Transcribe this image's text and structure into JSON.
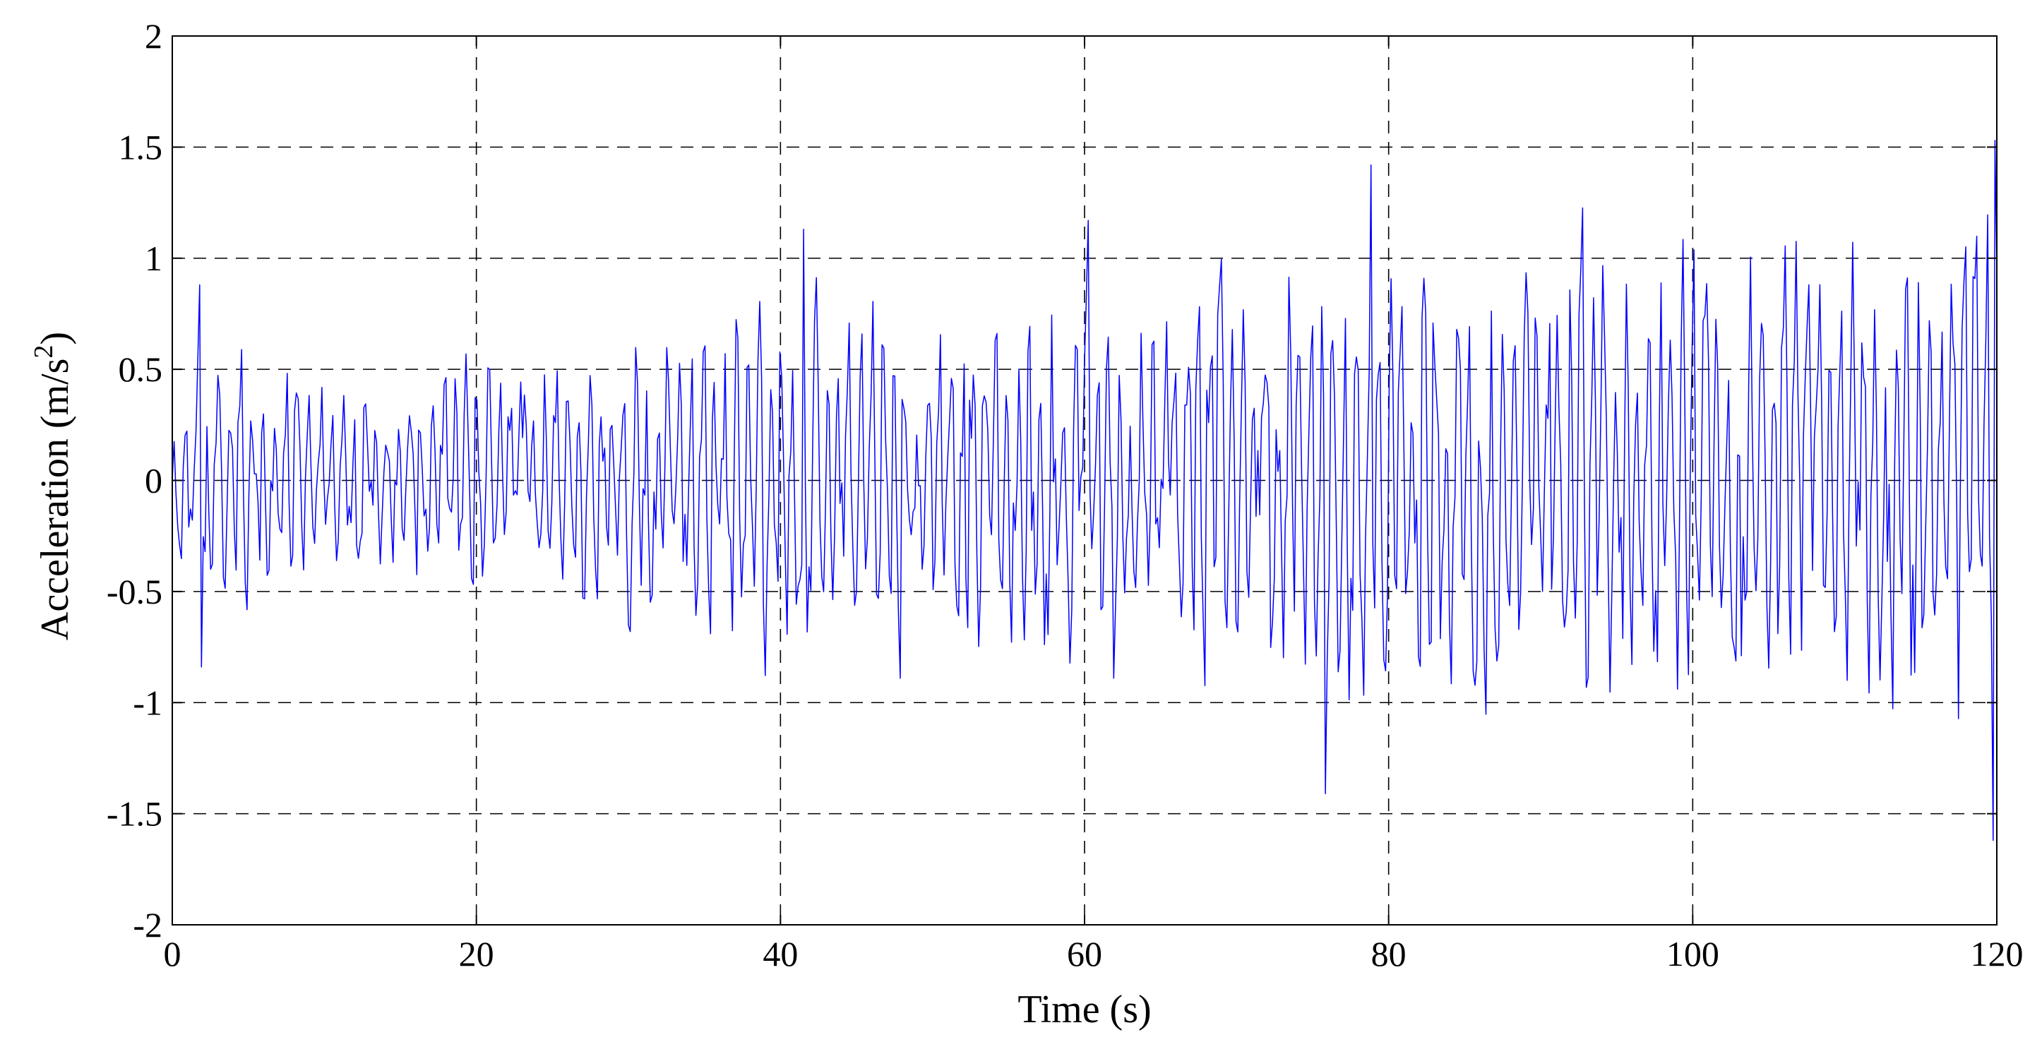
{
  "chart_data": {
    "type": "line",
    "title": "",
    "xlabel": "Time (s)",
    "ylabel_main": "Acceleration (m/s",
    "ylabel_sup": "2",
    "ylabel_close": ")",
    "xlim": [
      0,
      120
    ],
    "ylim": [
      -2,
      2
    ],
    "xticks": [
      0,
      20,
      40,
      60,
      80,
      100,
      120
    ],
    "xtick_labels": [
      "0",
      "20",
      "40",
      "60",
      "80",
      "100",
      "120"
    ],
    "yticks": [
      2,
      1.5,
      1,
      0.5,
      0,
      -0.5,
      -1,
      -1.5,
      -2
    ],
    "ytick_labels": [
      "2",
      "1.5",
      "1",
      "0.5",
      "0",
      "-0.5",
      "-1",
      "-1.5",
      "-2"
    ],
    "grid": true,
    "grid_style": "dashed",
    "legend": "none",
    "series": [
      {
        "color": "#0000ff",
        "sampling_interval_s": 0.12,
        "envelope": {
          "x": [
            0,
            2,
            5,
            10,
            15,
            20,
            25,
            30,
            35,
            40,
            45,
            50,
            55,
            60,
            65,
            70,
            75,
            80,
            85,
            90,
            95,
            100,
            105,
            110,
            115,
            120
          ],
          "y": [
            0.35,
            0.85,
            0.75,
            0.6,
            0.55,
            0.75,
            0.7,
            0.8,
            0.95,
            1.05,
            1.0,
            1.0,
            1.05,
            1.15,
            1.2,
            1.3,
            1.4,
            1.35,
            1.3,
            1.3,
            1.35,
            1.3,
            1.3,
            1.3,
            1.3,
            1.6
          ]
        },
        "peaks": [
          {
            "x": 1.8,
            "y": 0.88
          },
          {
            "x": 1.8,
            "y": -0.84
          },
          {
            "x": 41.5,
            "y": 1.13
          },
          {
            "x": 60.2,
            "y": 1.17
          },
          {
            "x": 75.8,
            "y": -1.41
          },
          {
            "x": 78.8,
            "y": 1.42
          },
          {
            "x": 119.9,
            "y": 1.53
          },
          {
            "x": 119.8,
            "y": -1.62
          }
        ]
      }
    ]
  }
}
